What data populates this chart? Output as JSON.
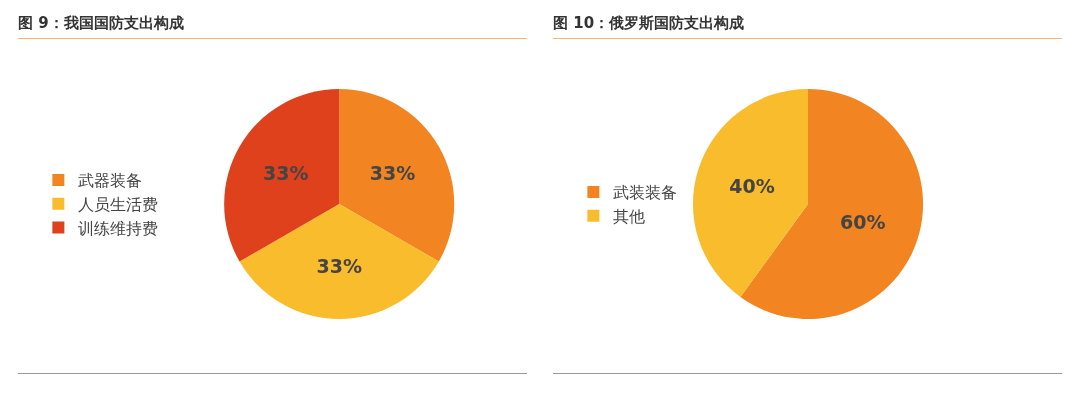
{
  "chart_data": [
    {
      "type": "pie",
      "title": "图 9：我国国防支出构成",
      "categories": [
        "武器装备",
        "人员生活费",
        "训练维持费"
      ],
      "values": [
        33,
        33,
        33
      ],
      "value_labels": [
        "33%",
        "33%",
        "33%"
      ],
      "colors": [
        "#f28522",
        "#f9bc2c",
        "#de411b"
      ],
      "legend": "left"
    },
    {
      "type": "pie",
      "title": "图 10：俄罗斯国防支出构成",
      "categories": [
        "武装装备",
        "其他"
      ],
      "values": [
        60,
        40
      ],
      "value_labels": [
        "60%",
        "40%"
      ],
      "colors": [
        "#f28522",
        "#f9bc2c"
      ],
      "legend": "left"
    }
  ]
}
